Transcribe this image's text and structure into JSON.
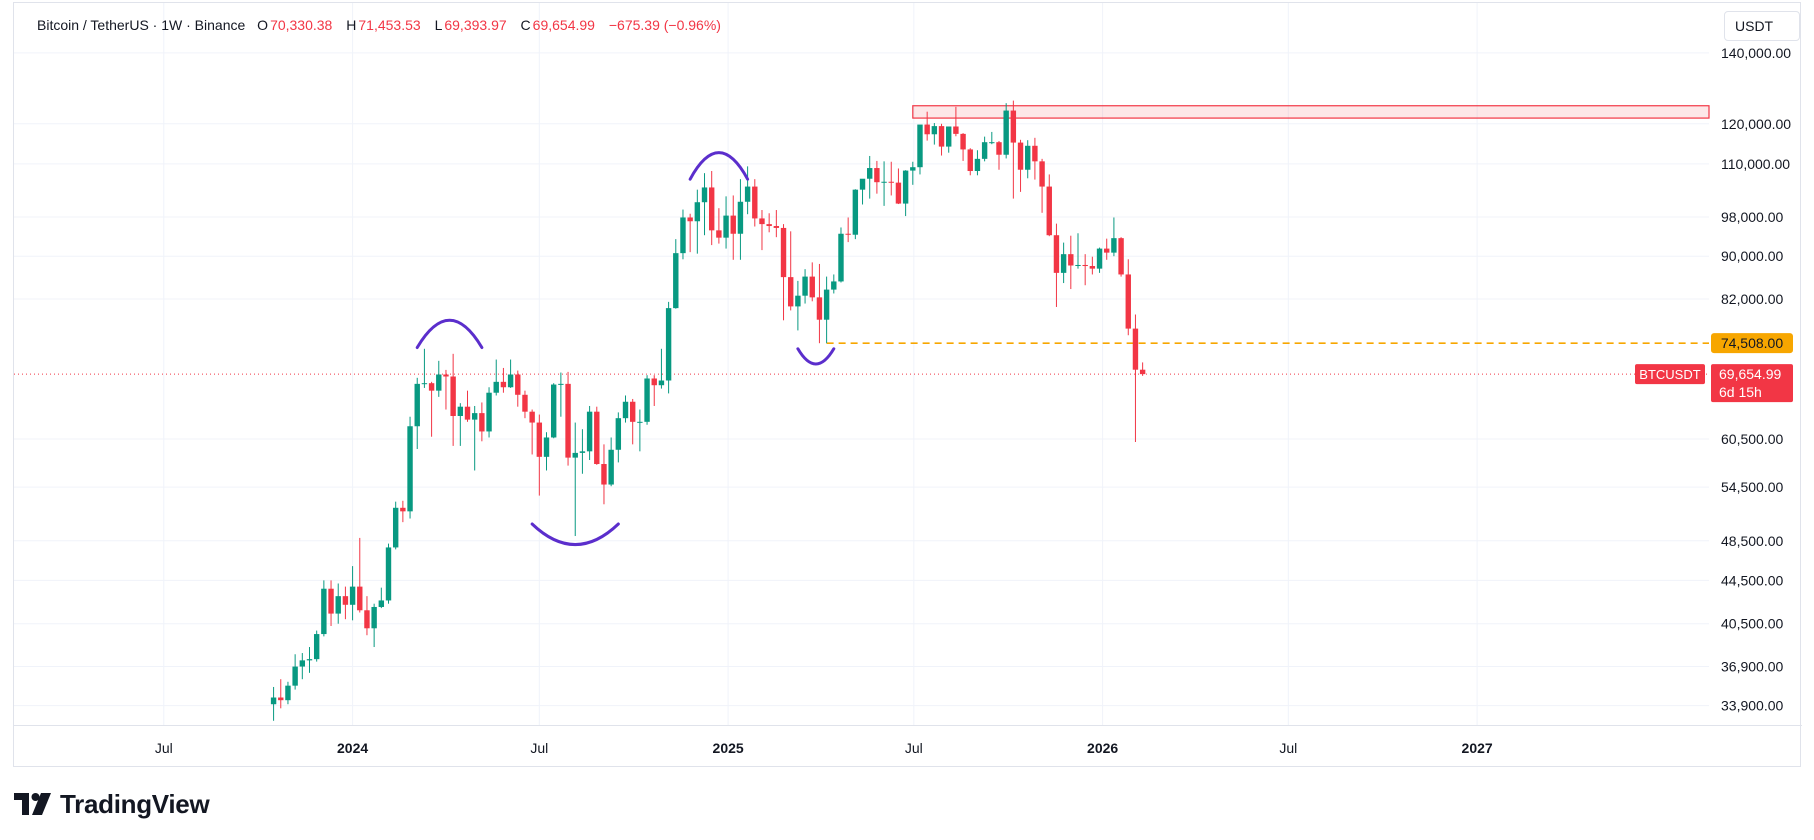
{
  "legend": {
    "symbol": "Bitcoin / TetherUS · 1W · Binance",
    "open_label": "O",
    "open": "70,330.38",
    "high_label": "H",
    "high": "71,453.53",
    "low_label": "L",
    "low": "69,393.97",
    "close_label": "C",
    "close": "69,654.99",
    "change": "−675.39 (−0.96%)"
  },
  "currency_button": "USDT",
  "brand": {
    "name": "TradingView",
    "logo_icon": "tradingview-logo-icon"
  },
  "colors": {
    "up": "#089981",
    "down": "#f23645",
    "accent": "#f7a600",
    "drawing": "#5b2ecc"
  },
  "chart_data": {
    "type": "candlestick",
    "title": "Bitcoin / TetherUS · 1W · Binance",
    "y_scale": "log",
    "ylim": [
      32500,
      152000
    ],
    "y_ticks": [
      {
        "value": 140000,
        "label": "140,000.00"
      },
      {
        "value": 120000,
        "label": "120,000.00"
      },
      {
        "value": 110000,
        "label": "110,000.00"
      },
      {
        "value": 98000,
        "label": "98,000.00"
      },
      {
        "value": 90000,
        "label": "90,000.00"
      },
      {
        "value": 82000,
        "label": "82,000.00"
      },
      {
        "value": 60500,
        "label": "60,500.00"
      },
      {
        "value": 54500,
        "label": "54,500.00"
      },
      {
        "value": 48500,
        "label": "48,500.00"
      },
      {
        "value": 44500,
        "label": "44,500.00"
      },
      {
        "value": 40500,
        "label": "40,500.00"
      },
      {
        "value": 36900,
        "label": "36,900.00"
      },
      {
        "value": 33900,
        "label": "33,900.00"
      }
    ],
    "x_ticks": [
      {
        "date": "2023-07-01",
        "label": "Jul",
        "bold": false
      },
      {
        "date": "2024-01-01",
        "label": "2024",
        "bold": true
      },
      {
        "date": "2024-07-01",
        "label": "Jul",
        "bold": false
      },
      {
        "date": "2025-01-01",
        "label": "2025",
        "bold": true
      },
      {
        "date": "2025-07-01",
        "label": "Jul",
        "bold": false
      },
      {
        "date": "2026-01-01",
        "label": "2026",
        "bold": true
      },
      {
        "date": "2026-07-01",
        "label": "Jul",
        "bold": false
      },
      {
        "date": "2027-01-01",
        "label": "2027",
        "bold": true
      }
    ],
    "x_range": [
      "2023-02-05",
      "2027-08-15"
    ],
    "candles": [
      {
        "date": "2023-10-16",
        "o": 34000,
        "h": 35300,
        "l": 32800,
        "c": 34500
      },
      {
        "date": "2023-10-23",
        "o": 34500,
        "h": 35900,
        "l": 33700,
        "c": 34300
      },
      {
        "date": "2023-10-30",
        "o": 34300,
        "h": 35700,
        "l": 34000,
        "c": 35400
      },
      {
        "date": "2023-11-06",
        "o": 35400,
        "h": 37900,
        "l": 35100,
        "c": 36900
      },
      {
        "date": "2023-11-13",
        "o": 36900,
        "h": 38000,
        "l": 35900,
        "c": 37400
      },
      {
        "date": "2023-11-20",
        "o": 37400,
        "h": 38500,
        "l": 36400,
        "c": 37500
      },
      {
        "date": "2023-11-27",
        "o": 37500,
        "h": 39900,
        "l": 37300,
        "c": 39600
      },
      {
        "date": "2023-12-04",
        "o": 39600,
        "h": 44500,
        "l": 39400,
        "c": 43700
      },
      {
        "date": "2023-12-11",
        "o": 43700,
        "h": 44500,
        "l": 40300,
        "c": 41400
      },
      {
        "date": "2023-12-18",
        "o": 41400,
        "h": 44200,
        "l": 40500,
        "c": 43000
      },
      {
        "date": "2023-12-25",
        "o": 43000,
        "h": 43900,
        "l": 40900,
        "c": 42200
      },
      {
        "date": "2024-01-01",
        "o": 42200,
        "h": 45900,
        "l": 40800,
        "c": 43900
      },
      {
        "date": "2024-01-08",
        "o": 43900,
        "h": 48800,
        "l": 41500,
        "c": 41700
      },
      {
        "date": "2024-01-15",
        "o": 41700,
        "h": 43000,
        "l": 39500,
        "c": 40100
      },
      {
        "date": "2024-01-22",
        "o": 40100,
        "h": 42300,
        "l": 38500,
        "c": 42000
      },
      {
        "date": "2024-01-29",
        "o": 42000,
        "h": 43800,
        "l": 41900,
        "c": 42600
      },
      {
        "date": "2024-02-05",
        "o": 42600,
        "h": 48200,
        "l": 42300,
        "c": 47800
      },
      {
        "date": "2024-02-12",
        "o": 47800,
        "h": 52800,
        "l": 47600,
        "c": 52100
      },
      {
        "date": "2024-02-19",
        "o": 52100,
        "h": 52900,
        "l": 50500,
        "c": 51700
      },
      {
        "date": "2024-02-26",
        "o": 51700,
        "h": 63500,
        "l": 50900,
        "c": 62200
      },
      {
        "date": "2024-03-04",
        "o": 62200,
        "h": 69100,
        "l": 59200,
        "c": 68200
      },
      {
        "date": "2024-03-11",
        "o": 68200,
        "h": 73600,
        "l": 67600,
        "c": 68300
      },
      {
        "date": "2024-03-18",
        "o": 68300,
        "h": 68500,
        "l": 60800,
        "c": 67200
      },
      {
        "date": "2024-03-25",
        "o": 67200,
        "h": 71700,
        "l": 66300,
        "c": 69600
      },
      {
        "date": "2024-04-01",
        "o": 69600,
        "h": 70300,
        "l": 64500,
        "c": 69300
      },
      {
        "date": "2024-04-08",
        "o": 69300,
        "h": 72800,
        "l": 59600,
        "c": 63600
      },
      {
        "date": "2024-04-15",
        "o": 63600,
        "h": 65400,
        "l": 59600,
        "c": 64900
      },
      {
        "date": "2024-04-22",
        "o": 64900,
        "h": 67200,
        "l": 62800,
        "c": 63100
      },
      {
        "date": "2024-04-29",
        "o": 63100,
        "h": 65000,
        "l": 56500,
        "c": 64000
      },
      {
        "date": "2024-05-06",
        "o": 64000,
        "h": 65500,
        "l": 60200,
        "c": 61500
      },
      {
        "date": "2024-05-13",
        "o": 61500,
        "h": 67700,
        "l": 60700,
        "c": 66900
      },
      {
        "date": "2024-05-20",
        "o": 66900,
        "h": 71900,
        "l": 66500,
        "c": 68500
      },
      {
        "date": "2024-05-27",
        "o": 68500,
        "h": 70600,
        "l": 66900,
        "c": 67700
      },
      {
        "date": "2024-06-03",
        "o": 67700,
        "h": 71900,
        "l": 67600,
        "c": 69600
      },
      {
        "date": "2024-06-10",
        "o": 69600,
        "h": 70200,
        "l": 64900,
        "c": 66600
      },
      {
        "date": "2024-06-17",
        "o": 66600,
        "h": 67200,
        "l": 63300,
        "c": 64200
      },
      {
        "date": "2024-06-24",
        "o": 64200,
        "h": 64500,
        "l": 58500,
        "c": 62700
      },
      {
        "date": "2024-07-01",
        "o": 62700,
        "h": 63800,
        "l": 53500,
        "c": 58200
      },
      {
        "date": "2024-07-08",
        "o": 58200,
        "h": 61400,
        "l": 56500,
        "c": 60700
      },
      {
        "date": "2024-07-15",
        "o": 60700,
        "h": 68300,
        "l": 60600,
        "c": 68100
      },
      {
        "date": "2024-07-22",
        "o": 68100,
        "h": 69900,
        "l": 63500,
        "c": 68200
      },
      {
        "date": "2024-07-29",
        "o": 68200,
        "h": 70000,
        "l": 57100,
        "c": 58100
      },
      {
        "date": "2024-08-05",
        "o": 58100,
        "h": 62700,
        "l": 49000,
        "c": 58700
      },
      {
        "date": "2024-08-12",
        "o": 58700,
        "h": 61800,
        "l": 56100,
        "c": 58900
      },
      {
        "date": "2024-08-19",
        "o": 58900,
        "h": 65000,
        "l": 57800,
        "c": 64200
      },
      {
        "date": "2024-08-26",
        "o": 64200,
        "h": 64900,
        "l": 57200,
        "c": 57300
      },
      {
        "date": "2024-09-02",
        "o": 57300,
        "h": 59800,
        "l": 52500,
        "c": 54800
      },
      {
        "date": "2024-09-09",
        "o": 54800,
        "h": 60700,
        "l": 54600,
        "c": 59100
      },
      {
        "date": "2024-09-16",
        "o": 59100,
        "h": 64100,
        "l": 57500,
        "c": 63300
      },
      {
        "date": "2024-09-23",
        "o": 63300,
        "h": 66500,
        "l": 62700,
        "c": 65600
      },
      {
        "date": "2024-09-30",
        "o": 65600,
        "h": 66000,
        "l": 59800,
        "c": 62800
      },
      {
        "date": "2024-10-07",
        "o": 62800,
        "h": 64500,
        "l": 58900,
        "c": 62800
      },
      {
        "date": "2024-10-14",
        "o": 62800,
        "h": 69500,
        "l": 62400,
        "c": 69000
      },
      {
        "date": "2024-10-21",
        "o": 69000,
        "h": 69500,
        "l": 65000,
        "c": 68000
      },
      {
        "date": "2024-10-28",
        "o": 68000,
        "h": 73600,
        "l": 67500,
        "c": 68700
      },
      {
        "date": "2024-11-04",
        "o": 68700,
        "h": 81500,
        "l": 66800,
        "c": 80400
      },
      {
        "date": "2024-11-11",
        "o": 80400,
        "h": 93400,
        "l": 80300,
        "c": 90600
      },
      {
        "date": "2024-11-18",
        "o": 90600,
        "h": 99600,
        "l": 89400,
        "c": 97900
      },
      {
        "date": "2024-11-25",
        "o": 97900,
        "h": 98700,
        "l": 90800,
        "c": 97100
      },
      {
        "date": "2024-12-02",
        "o": 97100,
        "h": 104000,
        "l": 90500,
        "c": 101200
      },
      {
        "date": "2024-12-09",
        "o": 101200,
        "h": 107800,
        "l": 94200,
        "c": 104500
      },
      {
        "date": "2024-12-16",
        "o": 104500,
        "h": 108300,
        "l": 92200,
        "c": 95200
      },
      {
        "date": "2024-12-23",
        "o": 95200,
        "h": 99900,
        "l": 92500,
        "c": 93700
      },
      {
        "date": "2024-12-30",
        "o": 93700,
        "h": 102500,
        "l": 91500,
        "c": 98300
      },
      {
        "date": "2025-01-06",
        "o": 98300,
        "h": 102700,
        "l": 89300,
        "c": 94500
      },
      {
        "date": "2025-01-13",
        "o": 94500,
        "h": 106400,
        "l": 89300,
        "c": 101300
      },
      {
        "date": "2025-01-20",
        "o": 101300,
        "h": 109400,
        "l": 98600,
        "c": 104700
      },
      {
        "date": "2025-01-27",
        "o": 104700,
        "h": 106400,
        "l": 96000,
        "c": 97700
      },
      {
        "date": "2025-02-03",
        "o": 97700,
        "h": 99500,
        "l": 91200,
        "c": 96500
      },
      {
        "date": "2025-02-10",
        "o": 96500,
        "h": 98800,
        "l": 94800,
        "c": 96100
      },
      {
        "date": "2025-02-17",
        "o": 96100,
        "h": 99500,
        "l": 93800,
        "c": 95700
      },
      {
        "date": "2025-02-24",
        "o": 95700,
        "h": 96500,
        "l": 78300,
        "c": 86000
      },
      {
        "date": "2025-03-03",
        "o": 86000,
        "h": 95000,
        "l": 80000,
        "c": 80700
      },
      {
        "date": "2025-03-10",
        "o": 80700,
        "h": 85300,
        "l": 76600,
        "c": 82600
      },
      {
        "date": "2025-03-17",
        "o": 82600,
        "h": 87500,
        "l": 81200,
        "c": 86100
      },
      {
        "date": "2025-03-24",
        "o": 86100,
        "h": 88800,
        "l": 81600,
        "c": 82300
      },
      {
        "date": "2025-03-31",
        "o": 82300,
        "h": 88500,
        "l": 74500,
        "c": 78400
      },
      {
        "date": "2025-04-07",
        "o": 78400,
        "h": 86100,
        "l": 74500,
        "c": 83700
      },
      {
        "date": "2025-04-14",
        "o": 83700,
        "h": 86500,
        "l": 83000,
        "c": 85200
      },
      {
        "date": "2025-04-21",
        "o": 85200,
        "h": 95800,
        "l": 85000,
        "c": 94500
      },
      {
        "date": "2025-04-28",
        "o": 94500,
        "h": 97900,
        "l": 92800,
        "c": 94300
      },
      {
        "date": "2025-05-05",
        "o": 94300,
        "h": 104100,
        "l": 93400,
        "c": 104000
      },
      {
        "date": "2025-05-12",
        "o": 104000,
        "h": 105800,
        "l": 100700,
        "c": 106500
      },
      {
        "date": "2025-05-19",
        "o": 106500,
        "h": 111900,
        "l": 102000,
        "c": 109000
      },
      {
        "date": "2025-05-26",
        "o": 109000,
        "h": 110700,
        "l": 103100,
        "c": 105700
      },
      {
        "date": "2025-06-02",
        "o": 105700,
        "h": 110600,
        "l": 100400,
        "c": 105800
      },
      {
        "date": "2025-06-09",
        "o": 105800,
        "h": 110500,
        "l": 102700,
        "c": 105600
      },
      {
        "date": "2025-06-16",
        "o": 105600,
        "h": 108900,
        "l": 100800,
        "c": 100900
      },
      {
        "date": "2025-06-23",
        "o": 100900,
        "h": 108500,
        "l": 98200,
        "c": 108400
      },
      {
        "date": "2025-06-30",
        "o": 108400,
        "h": 110500,
        "l": 105100,
        "c": 109200
      },
      {
        "date": "2025-07-07",
        "o": 109200,
        "h": 119500,
        "l": 107500,
        "c": 119800
      },
      {
        "date": "2025-07-14",
        "o": 119800,
        "h": 123200,
        "l": 115700,
        "c": 117300
      },
      {
        "date": "2025-07-21",
        "o": 117300,
        "h": 120200,
        "l": 114700,
        "c": 119400
      },
      {
        "date": "2025-07-28",
        "o": 119400,
        "h": 120000,
        "l": 112000,
        "c": 114200
      },
      {
        "date": "2025-08-04",
        "o": 114200,
        "h": 119300,
        "l": 112700,
        "c": 119300
      },
      {
        "date": "2025-08-11",
        "o": 119300,
        "h": 124500,
        "l": 116800,
        "c": 117400
      },
      {
        "date": "2025-08-18",
        "o": 117400,
        "h": 117600,
        "l": 110700,
        "c": 113500
      },
      {
        "date": "2025-08-25",
        "o": 113500,
        "h": 113800,
        "l": 107300,
        "c": 108300
      },
      {
        "date": "2025-09-01",
        "o": 108300,
        "h": 113300,
        "l": 107300,
        "c": 111200
      },
      {
        "date": "2025-09-08",
        "o": 111200,
        "h": 116700,
        "l": 110600,
        "c": 115300
      },
      {
        "date": "2025-09-15",
        "o": 115300,
        "h": 117900,
        "l": 114800,
        "c": 115300
      },
      {
        "date": "2025-09-22",
        "o": 115300,
        "h": 115600,
        "l": 108600,
        "c": 112200
      },
      {
        "date": "2025-09-29",
        "o": 112200,
        "h": 125500,
        "l": 111300,
        "c": 123500
      },
      {
        "date": "2025-10-06",
        "o": 123500,
        "h": 126200,
        "l": 102000,
        "c": 115200
      },
      {
        "date": "2025-10-13",
        "o": 115200,
        "h": 115900,
        "l": 103500,
        "c": 108600
      },
      {
        "date": "2025-10-20",
        "o": 108600,
        "h": 115800,
        "l": 106600,
        "c": 114400
      },
      {
        "date": "2025-10-27",
        "o": 114400,
        "h": 116400,
        "l": 106300,
        "c": 110600
      },
      {
        "date": "2025-11-03",
        "o": 110600,
        "h": 111200,
        "l": 98900,
        "c": 104700
      },
      {
        "date": "2025-11-10",
        "o": 104700,
        "h": 107500,
        "l": 94000,
        "c": 94200
      },
      {
        "date": "2025-11-17",
        "o": 94200,
        "h": 96600,
        "l": 80600,
        "c": 86800
      },
      {
        "date": "2025-11-24",
        "o": 86800,
        "h": 92700,
        "l": 84900,
        "c": 90400
      },
      {
        "date": "2025-12-01",
        "o": 90400,
        "h": 94100,
        "l": 83800,
        "c": 88200
      },
      {
        "date": "2025-12-08",
        "o": 88200,
        "h": 94600,
        "l": 87600,
        "c": 88300
      },
      {
        "date": "2025-12-15",
        "o": 88300,
        "h": 90400,
        "l": 84500,
        "c": 88100
      },
      {
        "date": "2025-12-22",
        "o": 88100,
        "h": 89900,
        "l": 86500,
        "c": 87600
      },
      {
        "date": "2025-12-29",
        "o": 87600,
        "h": 91700,
        "l": 86800,
        "c": 91500
      },
      {
        "date": "2026-01-05",
        "o": 91500,
        "h": 93500,
        "l": 89300,
        "c": 90700
      },
      {
        "date": "2026-01-12",
        "o": 90700,
        "h": 97900,
        "l": 90000,
        "c": 93600
      },
      {
        "date": "2026-01-19",
        "o": 93600,
        "h": 93800,
        "l": 86100,
        "c": 86500
      },
      {
        "date": "2026-01-26",
        "o": 86500,
        "h": 89400,
        "l": 75800,
        "c": 76900
      },
      {
        "date": "2026-02-02",
        "o": 76900,
        "h": 79300,
        "l": 60100,
        "c": 70330
      },
      {
        "date": "2026-02-09",
        "o": 70330.38,
        "h": 71453.53,
        "l": 69393.97,
        "c": 69654.99
      }
    ],
    "resistance_zone": {
      "from_date": "2025-06-30",
      "to_date": "axis",
      "low": 121500,
      "high": 124800,
      "color": "#f23645"
    },
    "support_line": {
      "from_date": "2025-04-07",
      "value": 74508,
      "label": "74,508.00",
      "color": "#f7a600"
    },
    "last_price": {
      "value": 69654.99,
      "symbol": "BTCUSDT",
      "label": "69,654.99",
      "countdown": "6d 15h"
    },
    "annotations": [
      {
        "kind": "arc-top",
        "from_date": "2024-03-04",
        "to_date": "2024-05-06",
        "value": 73800,
        "peak": 78300
      },
      {
        "kind": "arc-bottom",
        "from_date": "2024-06-24",
        "to_date": "2024-09-16",
        "value": 50300,
        "trough": 48100
      },
      {
        "kind": "arc-top",
        "from_date": "2024-11-25",
        "to_date": "2025-01-20",
        "value": 106400,
        "peak": 112700
      },
      {
        "kind": "arc-bottom",
        "from_date": "2025-03-10",
        "to_date": "2025-04-14",
        "value": 73600,
        "trough": 71200
      }
    ]
  }
}
